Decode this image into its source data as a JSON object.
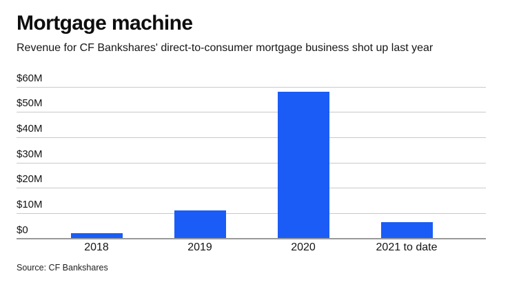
{
  "header": {
    "title": "Mortgage machine",
    "subtitle": "Revenue for CF Bankshares' direct-to-consumer mortgage business shot up last year"
  },
  "footer": {
    "source": "Source: CF Bankshares"
  },
  "colors": {
    "bar": "#1a5cf5",
    "gridline": "#c9c9c9",
    "baseline": "#999999",
    "text": "#141414"
  },
  "chart_data": {
    "type": "bar",
    "title": "Mortgage machine",
    "subtitle": "Revenue for CF Bankshares' direct-to-consumer mortgage business shot up last year",
    "categories": [
      "2018",
      "2019",
      "2020",
      "2021 to date"
    ],
    "values": [
      2,
      11,
      58,
      6.5
    ],
    "unit": "millions USD",
    "xlabel": "",
    "ylabel": "",
    "ylim": [
      0,
      60
    ],
    "yticks": [
      0,
      10,
      20,
      30,
      40,
      50,
      60
    ],
    "ytick_labels": [
      "$0",
      "$10M",
      "$20M",
      "$30M",
      "$40M",
      "$50M",
      "$60M"
    ],
    "grid": true,
    "legend": false,
    "bar_color": "#1a5cf5",
    "source": "Source: CF Bankshares"
  }
}
